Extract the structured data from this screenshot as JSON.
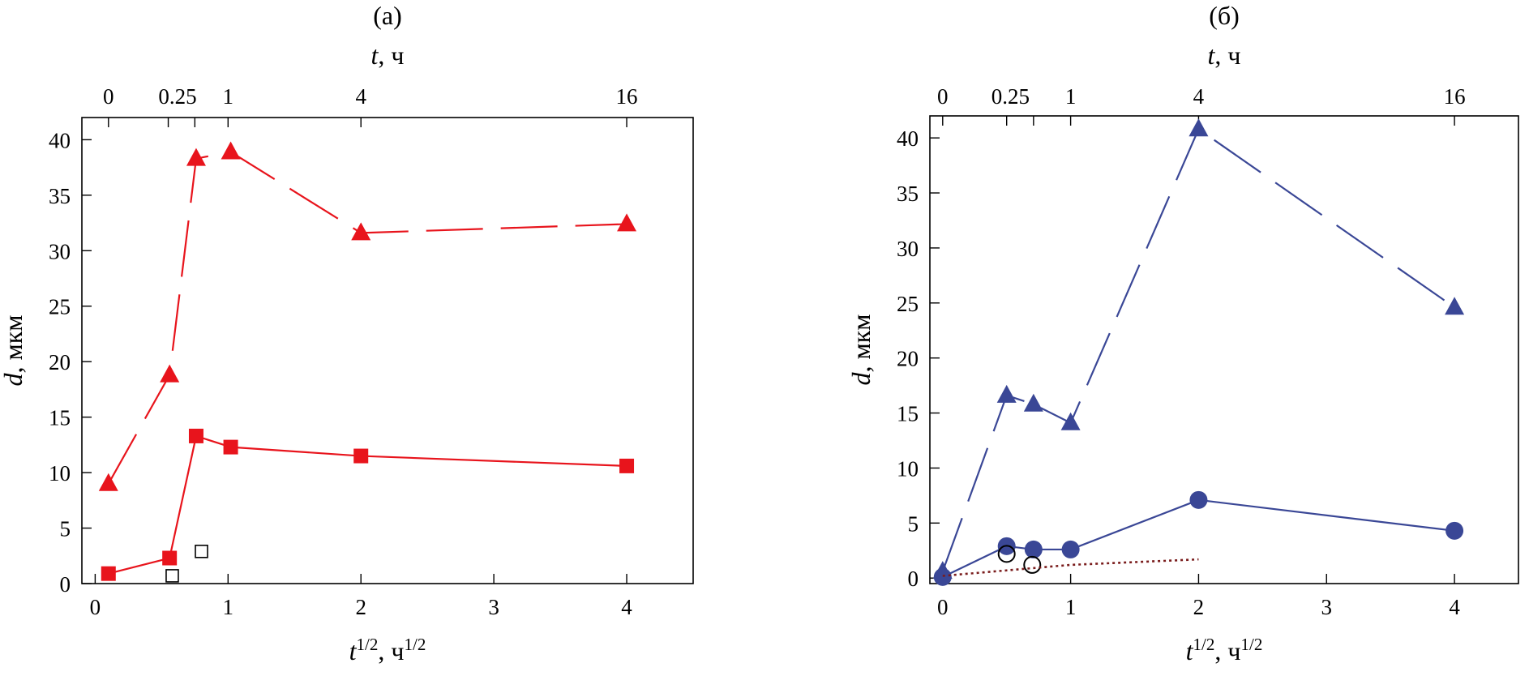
{
  "chart_data": [
    {
      "type": "line",
      "panel_label": "(а)",
      "xlabel": {
        "base": "t",
        "exp": "1/2",
        "sep": ", ч",
        "unit_exp": "1/2"
      },
      "ylabel": {
        "italic": "d",
        "rest": ", мкм"
      },
      "top_label": {
        "italic": "t",
        "rest": ", ч"
      },
      "xlim": [
        -0.1,
        4.5
      ],
      "ylim": [
        0,
        42
      ],
      "x_ticks": [
        0,
        1,
        2,
        3,
        4
      ],
      "x_tick_labels": [
        "0",
        "1",
        "2",
        "3",
        "4"
      ],
      "y_ticks": [
        0,
        5,
        10,
        15,
        20,
        25,
        30,
        35,
        40
      ],
      "y_tick_labels": [
        "0",
        "5",
        "10",
        "15",
        "20",
        "25",
        "30",
        "35",
        "40"
      ],
      "top_ticks": [
        0.1,
        0.55,
        0.75,
        1.0,
        2.0,
        4.0
      ],
      "top_tick_labels": [
        {
          "x": 0.1,
          "label": "0"
        },
        {
          "x": 0.62,
          "label": "0.25"
        },
        {
          "x": 1.0,
          "label": "1"
        },
        {
          "x": 2.0,
          "label": "4"
        },
        {
          "x": 4.0,
          "label": "16"
        }
      ],
      "grid": false,
      "series": [
        {
          "marker": "triangle",
          "line": "long-dash",
          "color": "#e8141c",
          "x": [
            0.1,
            0.56,
            0.76,
            1.02,
            2.0,
            4.0
          ],
          "y": [
            9,
            18.8,
            38.3,
            38.9,
            31.6,
            32.4
          ]
        },
        {
          "marker": "square",
          "line": "solid",
          "color": "#e8141c",
          "x": [
            0.1,
            0.56,
            0.76,
            1.02,
            2.0,
            4.0
          ],
          "y": [
            0.9,
            2.3,
            13.3,
            12.3,
            11.5,
            10.6
          ]
        },
        {
          "marker": "open-square",
          "line": "none",
          "color": "#000000",
          "x": [
            0.58,
            0.8
          ],
          "y": [
            0.7,
            2.9
          ]
        }
      ]
    },
    {
      "type": "line",
      "panel_label": "(б)",
      "xlabel": {
        "base": "t",
        "exp": "1/2",
        "sep": ", ч",
        "unit_exp": "1/2"
      },
      "ylabel": {
        "italic": "d",
        "rest": ", мкм"
      },
      "top_label": {
        "italic": "t",
        "rest": ", ч"
      },
      "xlim": [
        -0.1,
        4.5
      ],
      "ylim": [
        -0.5,
        42
      ],
      "x_ticks": [
        0,
        1,
        2,
        3,
        4
      ],
      "x_tick_labels": [
        "0",
        "1",
        "2",
        "3",
        "4"
      ],
      "y_ticks": [
        0,
        5,
        10,
        15,
        20,
        25,
        30,
        35,
        40
      ],
      "y_tick_labels": [
        "0",
        "5",
        "10",
        "15",
        "20",
        "25",
        "30",
        "35",
        "40"
      ],
      "top_ticks": [
        0.0,
        0.5,
        0.71,
        1.0,
        2.0,
        4.0
      ],
      "top_tick_labels": [
        {
          "x": 0.0,
          "label": "0"
        },
        {
          "x": 0.53,
          "label": "0.25"
        },
        {
          "x": 1.0,
          "label": "1"
        },
        {
          "x": 2.0,
          "label": "4"
        },
        {
          "x": 4.0,
          "label": "16"
        }
      ],
      "grid": false,
      "series": [
        {
          "marker": "triangle",
          "line": "long-dash",
          "color": "#3a4796",
          "x": [
            0.0,
            0.5,
            0.71,
            1.0,
            2.0,
            4.0
          ],
          "y": [
            0.6,
            16.6,
            15.8,
            14.1,
            40.8,
            24.6
          ]
        },
        {
          "marker": "circle",
          "line": "solid",
          "color": "#3a4796",
          "x": [
            0.0,
            0.5,
            0.71,
            1.0,
            2.0,
            4.0
          ],
          "y": [
            0.1,
            2.9,
            2.6,
            2.6,
            7.1,
            4.3
          ]
        },
        {
          "marker": "open-circle",
          "line": "none",
          "color": "#000000",
          "x": [
            0.5,
            0.7
          ],
          "y": [
            2.2,
            1.2
          ]
        },
        {
          "marker": "none",
          "line": "dotted",
          "color": "#7a1c1c",
          "x": [
            0.0,
            1.0,
            2.0
          ],
          "y": [
            0.2,
            1.2,
            1.7
          ]
        }
      ]
    }
  ]
}
